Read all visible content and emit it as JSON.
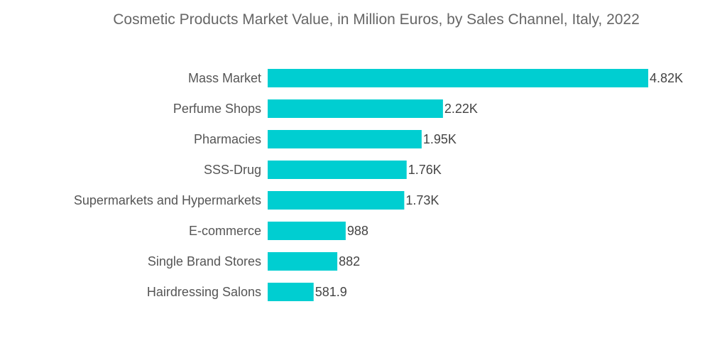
{
  "chart_data": {
    "type": "bar",
    "orientation": "horizontal",
    "title": "Cosmetic Products Market Value, in Million Euros, by Sales Channel, Italy, 2022",
    "categories": [
      "Mass Market",
      "Perfume Shops",
      "Pharmacies",
      "SSS-Drug",
      "Supermarkets and Hypermarkets",
      "E-commerce",
      "Single Brand Stores",
      "Hairdressing Salons"
    ],
    "values": [
      4820,
      2220,
      1950,
      1760,
      1730,
      988,
      882,
      581.9
    ],
    "data_labels": [
      "4.82K",
      "2.22K",
      "1.95K",
      "1.76K",
      "1.73K",
      "988",
      "882",
      "581.9"
    ],
    "xlabel": "",
    "ylabel": "",
    "grid": false,
    "bar_color": "#00CED1"
  }
}
